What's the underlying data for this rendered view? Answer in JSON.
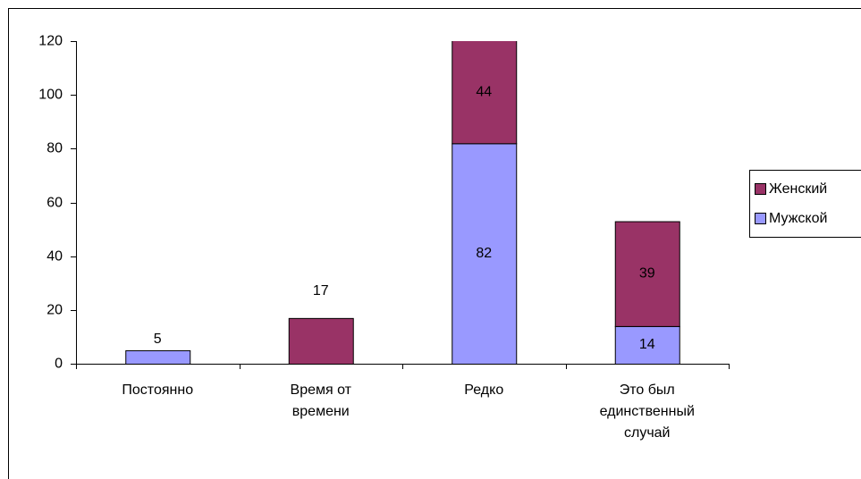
{
  "chart_data": {
    "type": "bar",
    "stacked": true,
    "categories": [
      "Постоянно",
      "Время от времени",
      "Редко",
      "Это был единственный случай"
    ],
    "series": [
      {
        "name": "Мужской",
        "color": "#9999ff",
        "values": [
          5,
          null,
          82,
          14
        ]
      },
      {
        "name": "Женский",
        "color": "#993366",
        "values": [
          null,
          17,
          44,
          39
        ]
      }
    ],
    "ylim": [
      0,
      120
    ],
    "yticks": [
      0,
      20,
      40,
      60,
      80,
      100,
      120
    ],
    "grid": false,
    "legend": "right"
  }
}
